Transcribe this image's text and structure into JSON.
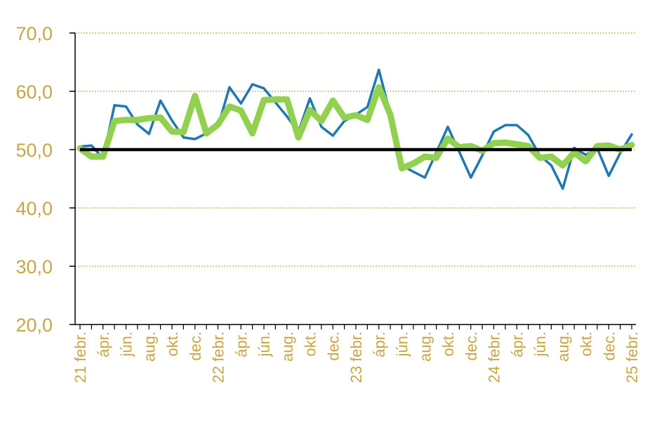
{
  "chart_data": {
    "type": "line",
    "title": "",
    "xlabel": "",
    "ylabel": "",
    "ylim": [
      20,
      70
    ],
    "grid": true,
    "y_ticks": [
      "20,0",
      "30,0",
      "40,0",
      "50,0",
      "60,0",
      "70,0"
    ],
    "x_ticks": [
      {
        "i": 0,
        "label": "21 febr."
      },
      {
        "i": 2,
        "label": "ápr."
      },
      {
        "i": 4,
        "label": "jún."
      },
      {
        "i": 6,
        "label": "aug."
      },
      {
        "i": 8,
        "label": "okt."
      },
      {
        "i": 10,
        "label": "dec."
      },
      {
        "i": 12,
        "label": "22 febr."
      },
      {
        "i": 14,
        "label": "ápr."
      },
      {
        "i": 16,
        "label": "jún."
      },
      {
        "i": 18,
        "label": "aug."
      },
      {
        "i": 20,
        "label": "okt."
      },
      {
        "i": 22,
        "label": "dec."
      },
      {
        "i": 24,
        "label": "23 febr."
      },
      {
        "i": 26,
        "label": "ápr."
      },
      {
        "i": 28,
        "label": "jún."
      },
      {
        "i": 30,
        "label": "aug."
      },
      {
        "i": 32,
        "label": "okt."
      },
      {
        "i": 34,
        "label": "dec."
      },
      {
        "i": 36,
        "label": "24 febr."
      },
      {
        "i": 38,
        "label": "ápr."
      },
      {
        "i": 40,
        "label": "jún."
      },
      {
        "i": 42,
        "label": "aug."
      },
      {
        "i": 44,
        "label": "okt."
      },
      {
        "i": 46,
        "label": "dec."
      },
      {
        "i": 48,
        "label": "25 febr."
      }
    ],
    "threshold": 50,
    "series": [
      {
        "color": "#1F77B4",
        "values": [
          50.5,
          50.7,
          48.5,
          57.6,
          57.4,
          54.3,
          52.7,
          58.4,
          55.0,
          52.1,
          51.8,
          52.8,
          53.9,
          60.7,
          57.9,
          61.2,
          60.5,
          58.1,
          55.7,
          53.0,
          58.8,
          53.9,
          52.4,
          54.9,
          56.0,
          57.3,
          63.7,
          56.0,
          47.3,
          46.2,
          45.2,
          49.5,
          53.9,
          49.6,
          45.2,
          49.0,
          53.1,
          54.2,
          54.2,
          52.5,
          49.0,
          47.3,
          43.3,
          50.3,
          49.1,
          50.2,
          45.5,
          49.4,
          52.6
        ]
      },
      {
        "color": "#92D050",
        "values": [
          50.2,
          48.8,
          48.8,
          54.9,
          55.1,
          55.1,
          55.4,
          55.5,
          53.1,
          53.0,
          59.2,
          52.8,
          54.3,
          57.4,
          56.7,
          52.8,
          58.5,
          58.6,
          58.6,
          52.1,
          56.8,
          54.9,
          58.4,
          55.5,
          55.9,
          55.1,
          60.7,
          56.0,
          46.8,
          47.6,
          48.8,
          48.6,
          51.9,
          50.4,
          50.6,
          49.8,
          51.1,
          51.2,
          50.9,
          50.6,
          48.6,
          48.8,
          47.3,
          49.5,
          48.0,
          50.6,
          50.7,
          50.0,
          50.8
        ]
      }
    ]
  }
}
